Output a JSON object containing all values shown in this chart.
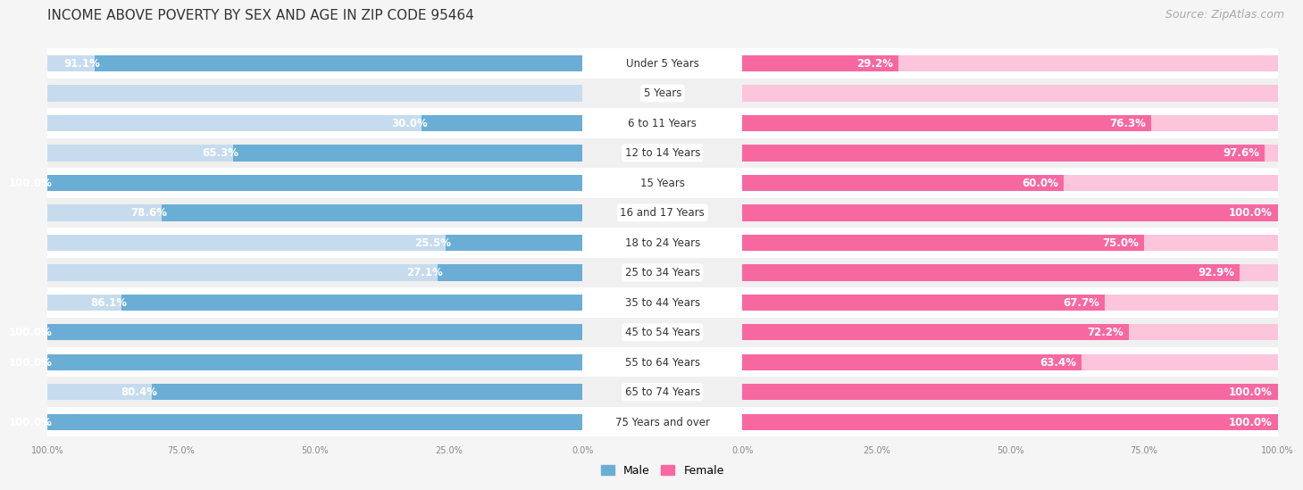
{
  "title": "INCOME ABOVE POVERTY BY SEX AND AGE IN ZIP CODE 95464",
  "source": "Source: ZipAtlas.com",
  "categories": [
    "Under 5 Years",
    "5 Years",
    "6 to 11 Years",
    "12 to 14 Years",
    "15 Years",
    "16 and 17 Years",
    "18 to 24 Years",
    "25 to 34 Years",
    "35 to 44 Years",
    "45 to 54 Years",
    "55 to 64 Years",
    "65 to 74 Years",
    "75 Years and over"
  ],
  "male_values": [
    91.1,
    0.0,
    30.0,
    65.3,
    100.0,
    78.6,
    25.5,
    27.1,
    86.1,
    100.0,
    100.0,
    80.4,
    100.0
  ],
  "female_values": [
    29.2,
    0.0,
    76.3,
    97.6,
    60.0,
    100.0,
    75.0,
    92.9,
    67.7,
    72.2,
    63.4,
    100.0,
    100.0
  ],
  "male_color": "#6aaed6",
  "male_color_light": "#c6dcee",
  "female_color": "#f768a1",
  "female_color_light": "#fcc5db",
  "male_label": "Male",
  "female_label": "Female",
  "row_color_odd": "#f0f0f0",
  "row_color_even": "#ffffff",
  "title_fontsize": 11,
  "source_fontsize": 9,
  "bar_label_fontsize": 8.5,
  "cat_label_fontsize": 8.5,
  "bar_height": 0.55,
  "axis_label_fontsize": 8
}
